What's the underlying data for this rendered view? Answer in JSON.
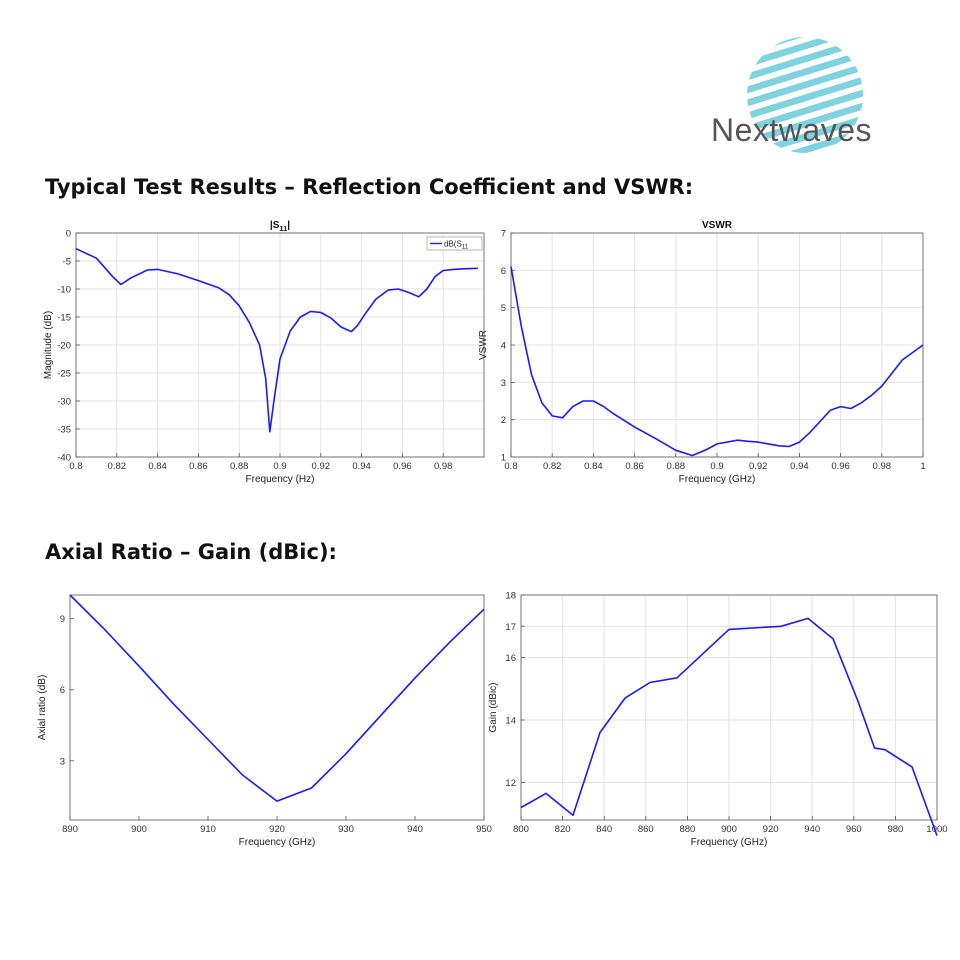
{
  "brand": {
    "name": "Nextwaves",
    "accent": "#7fd3df"
  },
  "sections": {
    "reflection_title": "Typical Test Results – Reflection Coefficient and VSWR:",
    "axial_title": "Axial Ratio – Gain (dBic):"
  },
  "chart_data": [
    {
      "id": "s11",
      "type": "line",
      "title": "|S11|",
      "xlabel": "Frequency (Hz)",
      "ylabel": "Magnitude (dB)",
      "xlim": [
        0.8,
        1.0
      ],
      "ylim": [
        -40,
        0
      ],
      "xticks": [
        0.8,
        0.82,
        0.84,
        0.86,
        0.88,
        0.9,
        0.92,
        0.94,
        0.96,
        0.98
      ],
      "xtick_labels": [
        "0.8",
        "0.82",
        "0.84",
        "0.86",
        "0.88",
        "0.9",
        "0.92",
        "0.94",
        "0.96",
        "0.98"
      ],
      "yticks": [
        0,
        -5,
        -10,
        -15,
        -20,
        -25,
        -30,
        -35,
        -40
      ],
      "ytick_labels": [
        "0",
        "-5",
        "-10",
        "-15",
        "-20",
        "-25",
        "-30",
        "-35",
        "-40"
      ],
      "grid": true,
      "legend": {
        "position": "top-right",
        "label": "dB(S11"
      },
      "series": [
        {
          "name": "dB(S11",
          "color": "#1a1aff",
          "x": [
            0.8,
            0.81,
            0.818,
            0.822,
            0.827,
            0.835,
            0.84,
            0.85,
            0.86,
            0.87,
            0.875,
            0.88,
            0.885,
            0.89,
            0.893,
            0.895,
            0.897,
            0.9,
            0.905,
            0.91,
            0.915,
            0.92,
            0.925,
            0.93,
            0.935,
            0.938,
            0.942,
            0.947,
            0.953,
            0.958,
            0.963,
            0.968,
            0.972,
            0.976,
            0.98,
            0.985,
            0.99,
            0.997
          ],
          "y": [
            -2.8,
            -4.5,
            -7.8,
            -9.2,
            -8.0,
            -6.6,
            -6.5,
            -7.3,
            -8.5,
            -9.8,
            -11.0,
            -13.0,
            -16.0,
            -20.0,
            -26.0,
            -35.5,
            -30.0,
            -22.5,
            -17.5,
            -15.0,
            -14.0,
            -14.2,
            -15.2,
            -16.8,
            -17.6,
            -16.5,
            -14.3,
            -11.8,
            -10.2,
            -10.0,
            -10.6,
            -11.4,
            -10.0,
            -7.8,
            -6.7,
            -6.5,
            -6.4,
            -6.3
          ]
        }
      ]
    },
    {
      "id": "vswr",
      "type": "line",
      "title": "VSWR",
      "xlabel": "Frequency (GHz)",
      "ylabel": "VSWR",
      "xlim": [
        0.8,
        1.0
      ],
      "ylim": [
        1,
        7
      ],
      "xticks": [
        0.8,
        0.82,
        0.84,
        0.86,
        0.88,
        0.9,
        0.92,
        0.94,
        0.96,
        0.98,
        1.0
      ],
      "xtick_labels": [
        "0.8",
        "0.82",
        "0.84",
        "0.86",
        "0.88",
        "0.9",
        "0.92",
        "0.94",
        "0.96",
        "0.98",
        "1"
      ],
      "yticks": [
        1,
        2,
        3,
        4,
        5,
        6,
        7
      ],
      "ytick_labels": [
        "1",
        "2",
        "3",
        "4",
        "5",
        "6",
        "7"
      ],
      "grid": true,
      "series": [
        {
          "color": "#1a1aff",
          "x": [
            0.8,
            0.805,
            0.81,
            0.815,
            0.82,
            0.825,
            0.83,
            0.835,
            0.84,
            0.845,
            0.85,
            0.86,
            0.87,
            0.88,
            0.888,
            0.895,
            0.9,
            0.91,
            0.915,
            0.92,
            0.93,
            0.935,
            0.94,
            0.945,
            0.95,
            0.955,
            0.96,
            0.965,
            0.97,
            0.975,
            0.98,
            0.985,
            0.99,
            1.0
          ],
          "y": [
            6.1,
            4.5,
            3.2,
            2.45,
            2.1,
            2.05,
            2.35,
            2.5,
            2.5,
            2.35,
            2.15,
            1.8,
            1.5,
            1.18,
            1.04,
            1.2,
            1.35,
            1.45,
            1.42,
            1.4,
            1.3,
            1.28,
            1.4,
            1.65,
            1.95,
            2.25,
            2.35,
            2.3,
            2.45,
            2.65,
            2.9,
            3.25,
            3.6,
            4.0
          ]
        }
      ]
    },
    {
      "id": "axial",
      "type": "line",
      "title": "",
      "xlabel": "Frequency (GHz)",
      "ylabel": "Axial ratio (dB)",
      "xlim": [
        890,
        950
      ],
      "ylim": [
        0.5,
        10
      ],
      "xticks": [
        890,
        900,
        910,
        920,
        930,
        940,
        950
      ],
      "xtick_labels": [
        "890",
        "900",
        "910",
        "920",
        "930",
        "940",
        "950"
      ],
      "yticks": [
        3,
        6,
        9
      ],
      "ytick_labels": [
        "3",
        "6",
        "9"
      ],
      "grid": false,
      "series": [
        {
          "color": "#1a1aff",
          "x": [
            890,
            895,
            900,
            905,
            910,
            915,
            920,
            925,
            930,
            935,
            940,
            945,
            950
          ],
          "y": [
            10.0,
            8.55,
            7.0,
            5.4,
            3.9,
            2.4,
            1.3,
            1.85,
            3.3,
            4.9,
            6.5,
            8.0,
            9.4
          ]
        }
      ]
    },
    {
      "id": "gain",
      "type": "line",
      "title": "",
      "xlabel": "Frequency (GHz)",
      "ylabel": "Gain (dBic)",
      "xlim": [
        800,
        1000
      ],
      "ylim": [
        10.8,
        18
      ],
      "xticks": [
        800,
        820,
        840,
        860,
        880,
        900,
        920,
        940,
        960,
        980,
        1000
      ],
      "xtick_labels": [
        "800",
        "820",
        "840",
        "860",
        "880",
        "900",
        "920",
        "940",
        "960",
        "980",
        "1000"
      ],
      "yticks": [
        12,
        14,
        16,
        17,
        18
      ],
      "ytick_labels": [
        "12",
        "14",
        "16",
        "17",
        "18"
      ],
      "grid": true,
      "series": [
        {
          "color": "#1a1aff",
          "x": [
            800,
            812,
            825,
            838,
            850,
            862,
            875,
            900,
            925,
            938,
            950,
            962,
            970,
            975,
            988,
            1000
          ],
          "y": [
            11.2,
            11.65,
            10.95,
            13.6,
            14.7,
            15.2,
            15.35,
            16.9,
            17.0,
            17.25,
            16.6,
            14.6,
            13.1,
            13.05,
            12.5,
            10.3
          ]
        }
      ]
    }
  ]
}
